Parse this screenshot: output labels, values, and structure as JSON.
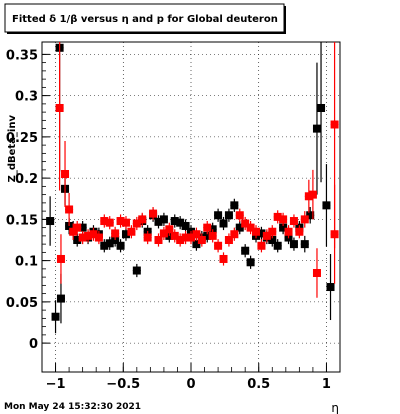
{
  "chart_data": {
    "type": "scatter",
    "title": "Fitted δ 1/β versus η and p for Global deuteron",
    "xlabel": "η",
    "ylabel": "Z_dBeta_inv",
    "footer": "Mon May 24 15:32:30 2021",
    "xlim": [
      -1.1,
      1.1
    ],
    "ylim": [
      -0.035,
      0.365
    ],
    "x_ticks": [
      -1,
      -0.5,
      0,
      0.5,
      1
    ],
    "x_tick_labels": [
      "−1",
      "−0.5",
      "0",
      "0.5",
      "1"
    ],
    "y_ticks": [
      0,
      0.05,
      0.1,
      0.15,
      0.2,
      0.25,
      0.3,
      0.35
    ],
    "y_tick_labels": [
      "0",
      "0.05",
      "0.1",
      "0.15",
      "0.2",
      "0.25",
      "0.3",
      "0.35"
    ],
    "grid": true,
    "colors": {
      "black_series": "#000000",
      "red_series": "#ff0000"
    },
    "series": [
      {
        "color": "black",
        "points": [
          {
            "x": -1.04,
            "y": 0.148,
            "err": 0.03
          },
          {
            "x": -1.0,
            "y": 0.032,
            "err": 0.02
          },
          {
            "x": -0.97,
            "y": 0.358,
            "err": 0.15
          },
          {
            "x": -0.96,
            "y": 0.054,
            "err": 0.03
          },
          {
            "x": -0.93,
            "y": 0.187,
            "err": 0.02
          },
          {
            "x": -0.9,
            "y": 0.142,
            "err": 0.01
          },
          {
            "x": -0.87,
            "y": 0.138,
            "err": 0.01
          },
          {
            "x": -0.84,
            "y": 0.125,
            "err": 0.008
          },
          {
            "x": -0.8,
            "y": 0.14,
            "err": 0.008
          },
          {
            "x": -0.76,
            "y": 0.128,
            "err": 0.008
          },
          {
            "x": -0.72,
            "y": 0.135,
            "err": 0.008
          },
          {
            "x": -0.68,
            "y": 0.132,
            "err": 0.008
          },
          {
            "x": -0.64,
            "y": 0.118,
            "err": 0.008
          },
          {
            "x": -0.6,
            "y": 0.121,
            "err": 0.008
          },
          {
            "x": -0.56,
            "y": 0.125,
            "err": 0.008
          },
          {
            "x": -0.52,
            "y": 0.118,
            "err": 0.008
          },
          {
            "x": -0.48,
            "y": 0.132,
            "err": 0.008
          },
          {
            "x": -0.4,
            "y": 0.088,
            "err": 0.008
          },
          {
            "x": -0.36,
            "y": 0.148,
            "err": 0.008
          },
          {
            "x": -0.32,
            "y": 0.135,
            "err": 0.008
          },
          {
            "x": -0.28,
            "y": 0.155,
            "err": 0.008
          },
          {
            "x": -0.24,
            "y": 0.147,
            "err": 0.008
          },
          {
            "x": -0.2,
            "y": 0.15,
            "err": 0.008
          },
          {
            "x": -0.16,
            "y": 0.13,
            "err": 0.008
          },
          {
            "x": -0.12,
            "y": 0.148,
            "err": 0.008
          },
          {
            "x": -0.08,
            "y": 0.146,
            "err": 0.008
          },
          {
            "x": -0.04,
            "y": 0.142,
            "err": 0.008
          },
          {
            "x": 0.0,
            "y": 0.135,
            "err": 0.008
          },
          {
            "x": 0.04,
            "y": 0.12,
            "err": 0.008
          },
          {
            "x": 0.08,
            "y": 0.128,
            "err": 0.008
          },
          {
            "x": 0.12,
            "y": 0.13,
            "err": 0.008
          },
          {
            "x": 0.16,
            "y": 0.138,
            "err": 0.008
          },
          {
            "x": 0.2,
            "y": 0.155,
            "err": 0.008
          },
          {
            "x": 0.24,
            "y": 0.145,
            "err": 0.008
          },
          {
            "x": 0.28,
            "y": 0.155,
            "err": 0.008
          },
          {
            "x": 0.32,
            "y": 0.167,
            "err": 0.008
          },
          {
            "x": 0.36,
            "y": 0.14,
            "err": 0.008
          },
          {
            "x": 0.4,
            "y": 0.112,
            "err": 0.008
          },
          {
            "x": 0.44,
            "y": 0.098,
            "err": 0.008
          },
          {
            "x": 0.48,
            "y": 0.13,
            "err": 0.008
          },
          {
            "x": 0.52,
            "y": 0.133,
            "err": 0.008
          },
          {
            "x": 0.56,
            "y": 0.128,
            "err": 0.008
          },
          {
            "x": 0.6,
            "y": 0.125,
            "err": 0.008
          },
          {
            "x": 0.64,
            "y": 0.118,
            "err": 0.008
          },
          {
            "x": 0.68,
            "y": 0.14,
            "err": 0.008
          },
          {
            "x": 0.72,
            "y": 0.128,
            "err": 0.008
          },
          {
            "x": 0.76,
            "y": 0.12,
            "err": 0.008
          },
          {
            "x": 0.8,
            "y": 0.14,
            "err": 0.008
          },
          {
            "x": 0.84,
            "y": 0.12,
            "err": 0.01
          },
          {
            "x": 0.88,
            "y": 0.155,
            "err": 0.01
          },
          {
            "x": 0.93,
            "y": 0.26,
            "err": 0.08
          },
          {
            "x": 0.96,
            "y": 0.285,
            "err": 0.09
          },
          {
            "x": 1.0,
            "y": 0.167,
            "err": 0.05
          },
          {
            "x": 1.03,
            "y": 0.068,
            "err": 0.04
          }
        ]
      },
      {
        "color": "red",
        "points": [
          {
            "x": -0.97,
            "y": 0.285,
            "err": 0.1
          },
          {
            "x": -0.96,
            "y": 0.102,
            "err": 0.03
          },
          {
            "x": -0.93,
            "y": 0.205,
            "err": 0.04
          },
          {
            "x": -0.9,
            "y": 0.162,
            "err": 0.02
          },
          {
            "x": -0.87,
            "y": 0.135,
            "err": 0.01
          },
          {
            "x": -0.84,
            "y": 0.14,
            "err": 0.008
          },
          {
            "x": -0.8,
            "y": 0.128,
            "err": 0.008
          },
          {
            "x": -0.76,
            "y": 0.13,
            "err": 0.008
          },
          {
            "x": -0.72,
            "y": 0.132,
            "err": 0.008
          },
          {
            "x": -0.68,
            "y": 0.128,
            "err": 0.008
          },
          {
            "x": -0.64,
            "y": 0.148,
            "err": 0.008
          },
          {
            "x": -0.6,
            "y": 0.146,
            "err": 0.008
          },
          {
            "x": -0.56,
            "y": 0.133,
            "err": 0.008
          },
          {
            "x": -0.52,
            "y": 0.148,
            "err": 0.008
          },
          {
            "x": -0.48,
            "y": 0.146,
            "err": 0.008
          },
          {
            "x": -0.44,
            "y": 0.135,
            "err": 0.008
          },
          {
            "x": -0.4,
            "y": 0.145,
            "err": 0.008
          },
          {
            "x": -0.36,
            "y": 0.15,
            "err": 0.008
          },
          {
            "x": -0.32,
            "y": 0.128,
            "err": 0.008
          },
          {
            "x": -0.28,
            "y": 0.157,
            "err": 0.008
          },
          {
            "x": -0.24,
            "y": 0.125,
            "err": 0.008
          },
          {
            "x": -0.2,
            "y": 0.133,
            "err": 0.008
          },
          {
            "x": -0.16,
            "y": 0.138,
            "err": 0.008
          },
          {
            "x": -0.12,
            "y": 0.13,
            "err": 0.008
          },
          {
            "x": -0.08,
            "y": 0.125,
            "err": 0.008
          },
          {
            "x": -0.04,
            "y": 0.128,
            "err": 0.008
          },
          {
            "x": 0.0,
            "y": 0.128,
            "err": 0.008
          },
          {
            "x": 0.04,
            "y": 0.132,
            "err": 0.008
          },
          {
            "x": 0.08,
            "y": 0.125,
            "err": 0.008
          },
          {
            "x": 0.12,
            "y": 0.14,
            "err": 0.008
          },
          {
            "x": 0.16,
            "y": 0.13,
            "err": 0.008
          },
          {
            "x": 0.2,
            "y": 0.118,
            "err": 0.008
          },
          {
            "x": 0.24,
            "y": 0.102,
            "err": 0.008
          },
          {
            "x": 0.28,
            "y": 0.125,
            "err": 0.008
          },
          {
            "x": 0.32,
            "y": 0.132,
            "err": 0.008
          },
          {
            "x": 0.36,
            "y": 0.155,
            "err": 0.008
          },
          {
            "x": 0.4,
            "y": 0.145,
            "err": 0.008
          },
          {
            "x": 0.44,
            "y": 0.14,
            "err": 0.008
          },
          {
            "x": 0.48,
            "y": 0.135,
            "err": 0.008
          },
          {
            "x": 0.52,
            "y": 0.118,
            "err": 0.008
          },
          {
            "x": 0.56,
            "y": 0.13,
            "err": 0.008
          },
          {
            "x": 0.6,
            "y": 0.135,
            "err": 0.008
          },
          {
            "x": 0.64,
            "y": 0.153,
            "err": 0.008
          },
          {
            "x": 0.68,
            "y": 0.15,
            "err": 0.008
          },
          {
            "x": 0.72,
            "y": 0.135,
            "err": 0.008
          },
          {
            "x": 0.76,
            "y": 0.148,
            "err": 0.008
          },
          {
            "x": 0.8,
            "y": 0.135,
            "err": 0.008
          },
          {
            "x": 0.84,
            "y": 0.15,
            "err": 0.01
          },
          {
            "x": 0.87,
            "y": 0.178,
            "err": 0.02
          },
          {
            "x": 0.9,
            "y": 0.18,
            "err": 0.03
          },
          {
            "x": 0.93,
            "y": 0.085,
            "err": 0.03
          },
          {
            "x": 1.06,
            "y": 0.265,
            "err": 0.15
          },
          {
            "x": 1.06,
            "y": 0.132,
            "err": 0.06
          }
        ]
      }
    ]
  }
}
